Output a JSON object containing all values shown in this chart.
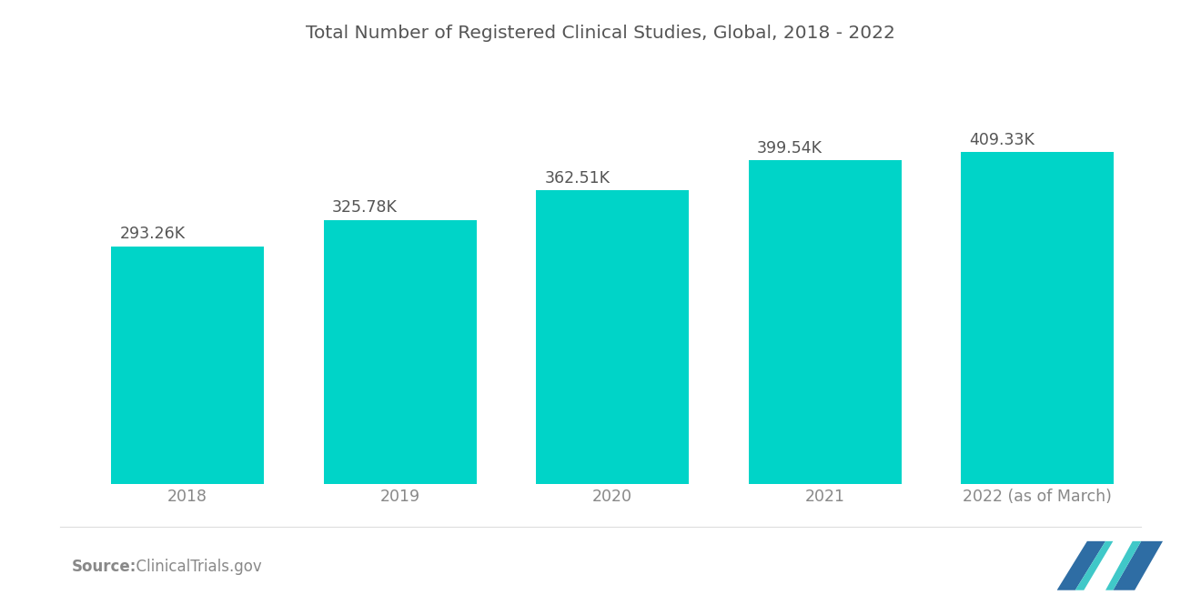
{
  "title": "Total Number of Registered Clinical Studies, Global, 2018 - 2022",
  "categories": [
    "2018",
    "2019",
    "2020",
    "2021",
    "2022 (as of March)"
  ],
  "values": [
    293.26,
    325.78,
    362.51,
    399.54,
    409.33
  ],
  "labels": [
    "293.26K",
    "325.78K",
    "362.51K",
    "399.54K",
    "409.33K"
  ],
  "bar_color": "#00D4C8",
  "background_color": "#ffffff",
  "source_bold": "Source:",
  "source_normal": "  ClinicalTrials.gov",
  "title_color": "#555555",
  "label_color": "#555555",
  "tick_color": "#888888",
  "ylim": [
    0,
    500
  ],
  "title_fontsize": 14.5,
  "label_fontsize": 12.5,
  "tick_fontsize": 12.5,
  "source_fontsize": 12,
  "bar_width": 0.72,
  "logo_blue": "#2E6DA4",
  "logo_teal": "#40C8C8"
}
